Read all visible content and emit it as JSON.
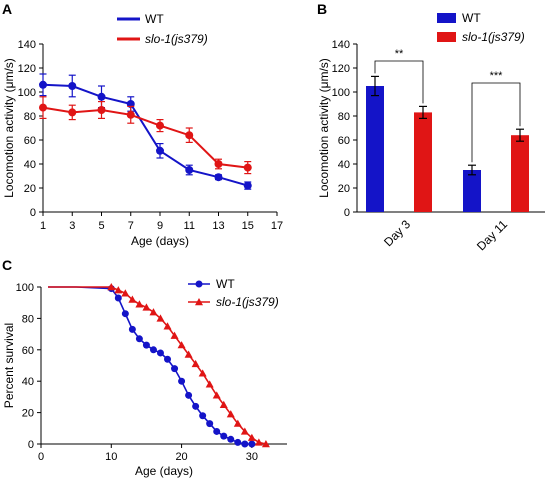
{
  "panels": {
    "A": "A",
    "B": "B",
    "C": "C"
  },
  "colors": {
    "wt": "#1414c8",
    "slo": "#e01515"
  },
  "chart_data": [
    {
      "panel": "A",
      "type": "line",
      "xlabel": "Age (days)",
      "ylabel": "Locomotion activity (μm/s)",
      "xlim": [
        1,
        17
      ],
      "ylim": [
        0,
        140
      ],
      "xticks": [
        1,
        3,
        5,
        7,
        9,
        11,
        13,
        15,
        17
      ],
      "yticks": [
        0,
        20,
        40,
        60,
        80,
        100,
        120,
        140
      ],
      "x": [
        1,
        3,
        5,
        7,
        9,
        11,
        13,
        15
      ],
      "legend_position": "top",
      "series": [
        {
          "name": "WT",
          "color": "#1414c8",
          "values": [
            106,
            105,
            96,
            90,
            51,
            35,
            29,
            22
          ],
          "errors": [
            9,
            9,
            9,
            6,
            6,
            4,
            2,
            3
          ]
        },
        {
          "name": "slo-1(js379)",
          "color": "#e01515",
          "values": [
            87,
            83,
            85,
            81,
            72,
            64,
            40,
            37
          ],
          "errors": [
            9,
            6,
            7,
            7,
            5,
            6,
            4,
            5
          ]
        }
      ]
    },
    {
      "panel": "B",
      "type": "bar",
      "ylabel": "Locomotion activity (μm/s)",
      "ylim": [
        0,
        140
      ],
      "yticks": [
        0,
        20,
        40,
        60,
        80,
        100,
        120,
        140
      ],
      "categories": [
        "Day 3",
        "Day 11"
      ],
      "legend_position": "top",
      "series": [
        {
          "name": "WT",
          "color": "#1414c8",
          "values": [
            105,
            35
          ],
          "errors": [
            8,
            4
          ]
        },
        {
          "name": "slo-1(js379)",
          "color": "#e01515",
          "values": [
            83,
            64
          ],
          "errors": [
            5,
            5
          ]
        }
      ],
      "significance": [
        "**",
        "***"
      ]
    },
    {
      "panel": "C",
      "type": "line",
      "xlabel": "Age (days)",
      "ylabel": "Percent survival",
      "xlim": [
        0,
        35
      ],
      "ylim": [
        0,
        100
      ],
      "xticks": [
        0,
        10,
        20,
        30
      ],
      "yticks": [
        0,
        20,
        40,
        60,
        80,
        100
      ],
      "legend_position": "top-right",
      "series": [
        {
          "name": "WT",
          "color": "#1414c8",
          "marker": "circle",
          "x": [
            1,
            5,
            10,
            11,
            12,
            13,
            14,
            15,
            16,
            17,
            18,
            19,
            20,
            21,
            22,
            23,
            24,
            25,
            26,
            27,
            28,
            29,
            30
          ],
          "values": [
            100,
            100,
            99,
            93,
            83,
            73,
            67,
            63,
            60,
            58,
            54,
            48,
            40,
            31,
            24,
            18,
            13,
            8,
            5,
            3,
            1,
            0,
            0
          ]
        },
        {
          "name": "slo-1(js379)",
          "color": "#e01515",
          "marker": "triangle",
          "x": [
            1,
            5,
            10,
            11,
            12,
            13,
            14,
            15,
            16,
            17,
            18,
            19,
            20,
            21,
            22,
            23,
            24,
            25,
            26,
            27,
            28,
            29,
            30,
            31,
            32
          ],
          "values": [
            100,
            100,
            100,
            98,
            96,
            92,
            89,
            87,
            84,
            80,
            75,
            69,
            63,
            57,
            51,
            45,
            38,
            31,
            25,
            19,
            13,
            8,
            4,
            1,
            0
          ]
        }
      ]
    }
  ]
}
